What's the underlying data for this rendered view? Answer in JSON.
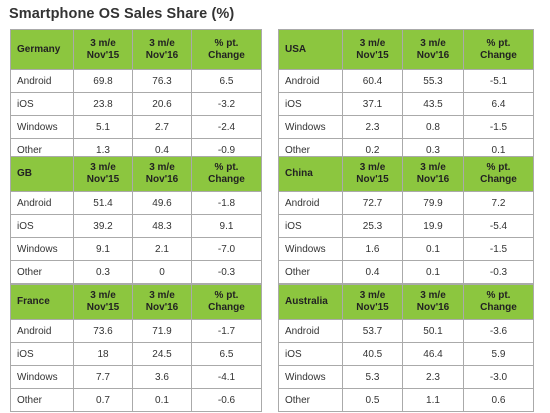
{
  "title": "Smartphone OS Sales Share (%)",
  "colors": {
    "header_bg": "#8cc63f",
    "border": "#aaaaaa",
    "text": "#333333"
  },
  "chart_data": [
    {
      "type": "table",
      "region": "Germany",
      "columns": [
        "3 m/e\nNov'15",
        "3 m/e\nNov'16",
        "% pt.\nChange"
      ],
      "rows": [
        {
          "os": "Android",
          "values": [
            "69.8",
            "76.3",
            "6.5"
          ]
        },
        {
          "os": "iOS",
          "values": [
            "23.8",
            "20.6",
            "-3.2"
          ]
        },
        {
          "os": "Windows",
          "values": [
            "5.1",
            "2.7",
            "-2.4"
          ]
        },
        {
          "os": "Other",
          "values": [
            "1.3",
            "0.4",
            "-0.9"
          ]
        }
      ]
    },
    {
      "type": "table",
      "region": "USA",
      "columns": [
        "3 m/e Nov'15",
        "3 m/e Nov'16",
        "% pt.\nChange"
      ],
      "rows": [
        {
          "os": "Android",
          "values": [
            "60.4",
            "55.3",
            "-5.1"
          ]
        },
        {
          "os": "iOS",
          "values": [
            "37.1",
            "43.5",
            "6.4"
          ]
        },
        {
          "os": "Windows",
          "values": [
            "2.3",
            "0.8",
            "-1.5"
          ]
        },
        {
          "os": "Other",
          "values": [
            "0.2",
            "0.3",
            "0.1"
          ]
        }
      ]
    },
    {
      "type": "table",
      "region": "GB",
      "columns": [
        "3 m/e\nNov'15",
        "3 m/e\nNov'16",
        "% pt.\nChange"
      ],
      "rows": [
        {
          "os": "Android",
          "values": [
            "51.4",
            "49.6",
            "-1.8"
          ]
        },
        {
          "os": "iOS",
          "values": [
            "39.2",
            "48.3",
            "9.1"
          ]
        },
        {
          "os": "Windows",
          "values": [
            "9.1",
            "2.1",
            "-7.0"
          ]
        },
        {
          "os": "Other",
          "values": [
            "0.3",
            "0",
            "-0.3"
          ]
        }
      ]
    },
    {
      "type": "table",
      "region": "China",
      "columns": [
        "3 m/e Nov'15",
        "3 m/e Nov'16",
        "% pt.\nChange"
      ],
      "rows": [
        {
          "os": "Android",
          "values": [
            "72.7",
            "79.9",
            "7.2"
          ]
        },
        {
          "os": "iOS",
          "values": [
            "25.3",
            "19.9",
            "-5.4"
          ]
        },
        {
          "os": "Windows",
          "values": [
            "1.6",
            "0.1",
            "-1.5"
          ]
        },
        {
          "os": "Other",
          "values": [
            "0.4",
            "0.1",
            "-0.3"
          ]
        }
      ]
    },
    {
      "type": "table",
      "region": "France",
      "columns": [
        "3 m/e\nNov'15",
        "3 m/e\nNov'16",
        "% pt.\nChange"
      ],
      "rows": [
        {
          "os": "Android",
          "values": [
            "73.6",
            "71.9",
            "-1.7"
          ]
        },
        {
          "os": "iOS",
          "values": [
            "18",
            "24.5",
            "6.5"
          ]
        },
        {
          "os": "Windows",
          "values": [
            "7.7",
            "3.6",
            "-4.1"
          ]
        },
        {
          "os": "Other",
          "values": [
            "0.7",
            "0.1",
            "-0.6"
          ]
        }
      ]
    },
    {
      "type": "table",
      "region": "Australia",
      "columns": [
        "3 m/e Nov'15",
        "3 m/e Nov'16",
        "% pt.\nChange"
      ],
      "rows": [
        {
          "os": "Android",
          "values": [
            "53.7",
            "50.1",
            "-3.6"
          ]
        },
        {
          "os": "iOS",
          "values": [
            "40.5",
            "46.4",
            "5.9"
          ]
        },
        {
          "os": "Windows",
          "values": [
            "5.3",
            "2.3",
            "-3.0"
          ]
        },
        {
          "os": "Other",
          "values": [
            "0.5",
            "1.1",
            "0.6"
          ]
        }
      ]
    }
  ]
}
